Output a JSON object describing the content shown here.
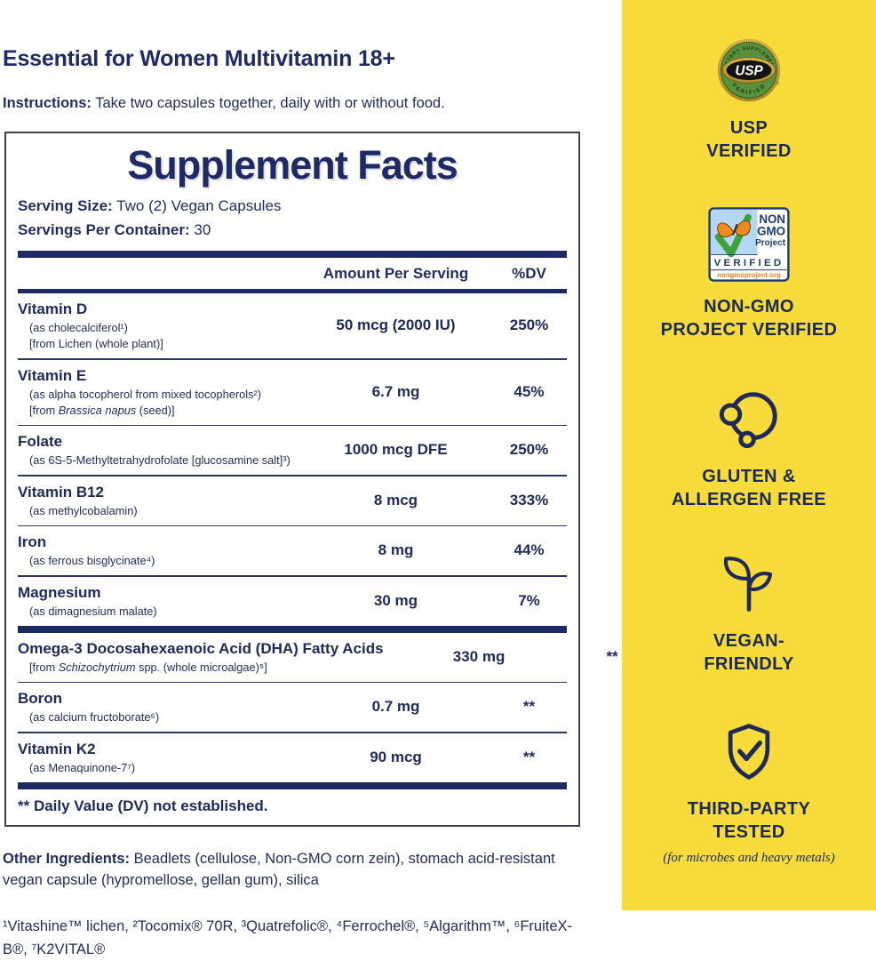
{
  "colors": {
    "navy": "#1e2a66",
    "yellow": "#f6db3a",
    "seal_green": "#58903c",
    "seal_gold": "#c9a43a",
    "nongmo_blue": "#b5d8f0",
    "nongmo_green": "#3fa33c",
    "nongmo_orange": "#f08a1f"
  },
  "header": {
    "title": "Essential for Women Multivitamin 18+",
    "instructions_label": "Instructions:",
    "instructions_text": " Take two capsules together, daily with or without food."
  },
  "panel": {
    "title": "Supplement Facts",
    "serving_size_label": "Serving Size:",
    "serving_size_value": " Two (2) Vegan Capsules",
    "servings_label": "Servings Per Container:",
    "servings_value": " 30",
    "col_amount": "Amount Per Serving",
    "col_dv": "%DV",
    "rows": [
      {
        "name": "Vitamin D",
        "sub": [
          [
            {
              "t": "(as cholecalciferol¹)"
            }
          ],
          [
            {
              "t": "[from Lichen (whole plant)]"
            }
          ]
        ],
        "amount": "50 mcg (2000 IU)",
        "dv": "250%",
        "div": "thin"
      },
      {
        "name": "Vitamin E",
        "sub": [
          [
            {
              "t": "(as alpha tocopherol from mixed tocopherols²)"
            }
          ],
          [
            {
              "t": "[from "
            },
            {
              "t": "Brassica napus",
              "i": true
            },
            {
              "t": " (seed)]"
            }
          ]
        ],
        "amount": "6.7 mg",
        "dv": "45%",
        "div": "thin"
      },
      {
        "name": "Folate",
        "sub": [
          [
            {
              "t": "(as 6S-5-Methyltetrahydrofolate [glucosamine salt]³)"
            }
          ]
        ],
        "amount": "1000 mcg DFE",
        "dv": "250%",
        "div": "thin"
      },
      {
        "name": "Vitamin B12",
        "sub": [
          [
            {
              "t": "(as methylcobalamin)"
            }
          ]
        ],
        "amount": "8 mcg",
        "dv": "333%",
        "div": "thin"
      },
      {
        "name": "Iron",
        "sub": [
          [
            {
              "t": "(as ferrous bisglycinate⁴)"
            }
          ]
        ],
        "amount": "8 mg",
        "dv": "44%",
        "div": "thin"
      },
      {
        "name": "Magnesium",
        "sub": [
          [
            {
              "t": "(as dimagnesium malate)"
            }
          ]
        ],
        "amount": "30 mg",
        "dv": "7%",
        "div": "thick"
      },
      {
        "name": "Omega-3 Docosahexaenoic Acid (DHA) Fatty Acids",
        "sub": [
          [
            {
              "t": "[from "
            },
            {
              "t": "Schizochytrium",
              "i": true
            },
            {
              "t": " spp. (whole microalgae)⁵]"
            }
          ]
        ],
        "amount": "330 mg",
        "dv": "**",
        "div": "thin"
      },
      {
        "name": "Boron",
        "sub": [
          [
            {
              "t": "(as calcium fructoborate⁶)"
            }
          ]
        ],
        "amount": "0.7 mg",
        "dv": "**",
        "div": "thin"
      },
      {
        "name": "Vitamin K2",
        "sub": [
          [
            {
              "t": "(as Menaquinone-7⁷)"
            }
          ]
        ],
        "amount": "90 mcg",
        "dv": "**",
        "div": "thick"
      }
    ],
    "footnote": "** Daily Value (DV) not established."
  },
  "other_ingredients": {
    "label": "Other Ingredients:",
    "text": " Beadlets (cellulose, Non-GMO corn zein), stomach acid-resistant vegan capsule (hypromellose, gellan gum), silica"
  },
  "footnotes": "¹Vitashine™ lichen, ²Tocomix® 70R, ³Quatrefolic®, ⁴Ferrochel®, ⁵Algarithm™, ⁶FruiteX-B®, ⁷K2VITAL®",
  "badges": {
    "usp": {
      "seal_top": "DIETARY SUPPLEMENT",
      "seal_center": "USP",
      "seal_bottom": "VERIFIED",
      "seal_reg": "®",
      "label1": "USP",
      "label2": "VERIFIED"
    },
    "nongmo": {
      "seal_line1": "NON",
      "seal_line2": "GMO",
      "seal_line3": "Project",
      "seal_verified": "VERIFIED",
      "seal_url": "nongmoproject.org",
      "label1": "NON-GMO",
      "label2": "PROJECT VERIFIED"
    },
    "gluten": {
      "label1": "GLUTEN &",
      "label2": "ALLERGEN FREE"
    },
    "vegan": {
      "label1": "VEGAN-",
      "label2": "FRIENDLY"
    },
    "tested": {
      "label1": "THIRD-PARTY",
      "label2": "TESTED",
      "sub": "(for microbes and heavy metals)"
    }
  }
}
